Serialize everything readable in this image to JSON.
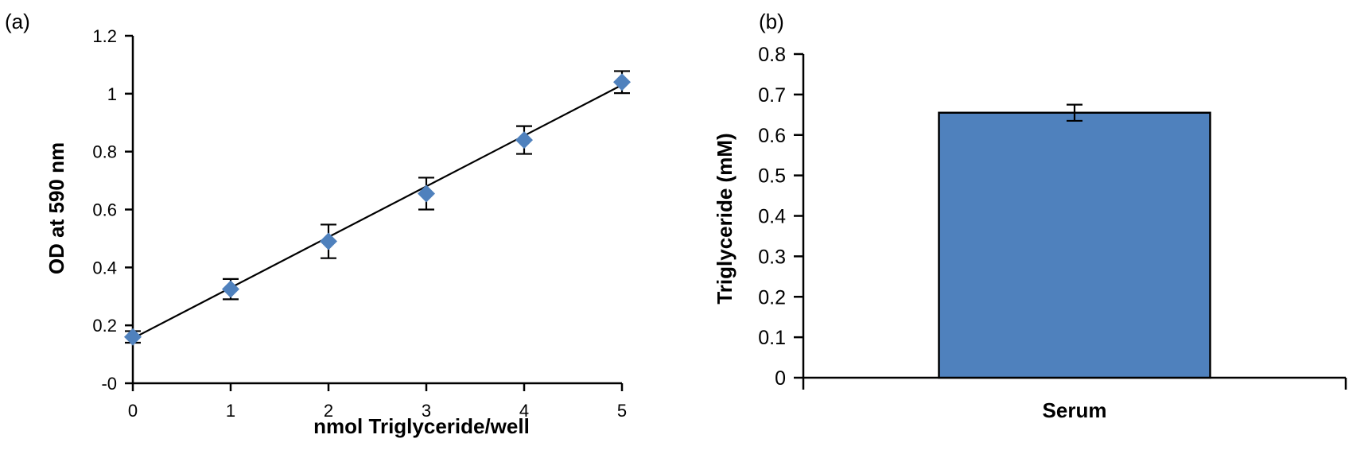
{
  "panels": [
    {
      "label": "(a)",
      "chart_data": {
        "type": "scatter",
        "title": "",
        "xlabel": "nmol Triglyceride/well",
        "ylabel": "OD at 590 nm",
        "x": [
          0,
          1,
          2,
          3,
          4,
          5
        ],
        "y": [
          0.16,
          0.325,
          0.49,
          0.655,
          0.84,
          1.04
        ],
        "error": [
          0.02,
          0.035,
          0.058,
          0.055,
          0.048,
          0.038
        ],
        "trendline": {
          "type": "linear",
          "x": [
            0,
            5
          ],
          "y": [
            0.155,
            1.03
          ]
        },
        "xlim": [
          0,
          5
        ],
        "ylim": [
          0,
          1.2
        ],
        "xticks": [
          "0",
          "1",
          "2",
          "3",
          "4",
          "5"
        ],
        "yticks": [
          "-0",
          "0.2",
          "0.4",
          "0.6",
          "0.8",
          "1",
          "1.2"
        ],
        "marker_color": "#4F81BD",
        "grid": false
      }
    },
    {
      "label": "(b)",
      "chart_data": {
        "type": "bar",
        "title": "",
        "xlabel": "",
        "ylabel": "Triglyceride (mM)",
        "categories": [
          "Serum"
        ],
        "values": [
          0.655
        ],
        "error": [
          0.02
        ],
        "ylim": [
          0,
          0.8
        ],
        "yticks": [
          "0",
          "0.1",
          "0.2",
          "0.3",
          "0.4",
          "0.5",
          "0.6",
          "0.7",
          "0.8"
        ],
        "bar_color": "#4F81BD",
        "grid": false
      }
    }
  ]
}
